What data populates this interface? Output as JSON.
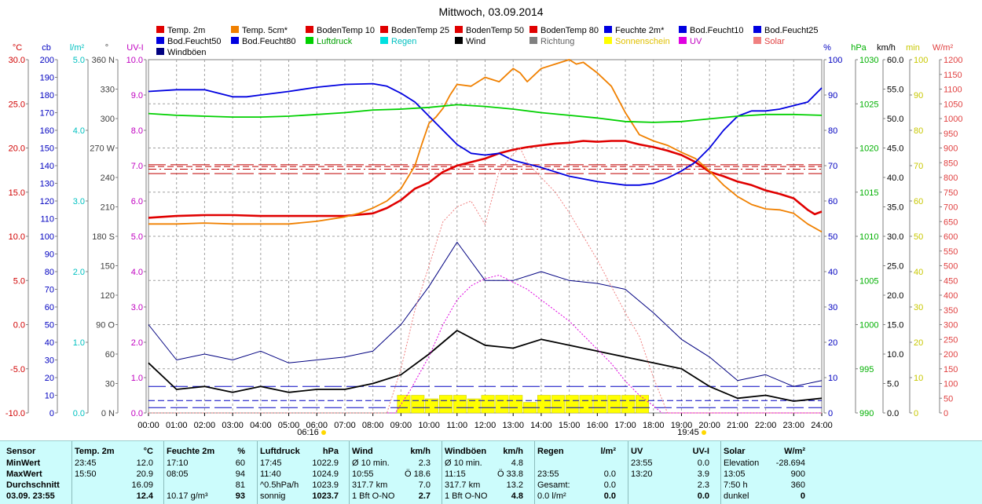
{
  "title": "Mittwoch, 03.09.2014",
  "legend": [
    {
      "label": "Temp. 2m",
      "color": "#e00000"
    },
    {
      "label": "Temp. 5cm*",
      "color": "#f08000"
    },
    {
      "label": "BodenTemp 10",
      "color": "#e00000"
    },
    {
      "label": "BodenTemp 25",
      "color": "#e00000"
    },
    {
      "label": "BodenTemp 50",
      "color": "#e00000"
    },
    {
      "label": "BodenTemp 80",
      "color": "#e00000"
    },
    {
      "label": "Feuchte 2m*",
      "color": "#0000e0"
    },
    {
      "label": "Bod.Feucht10",
      "color": "#0000e0"
    },
    {
      "label": "Bod.Feucht25",
      "color": "#0000e0"
    },
    {
      "label": "Bod.Feucht50",
      "color": "#0000e0"
    },
    {
      "label": "Bod.Feucht80",
      "color": "#0000e0"
    },
    {
      "label": "Luftdruck",
      "color": "#00d000"
    },
    {
      "label": "Regen",
      "color": "#00e0e0"
    },
    {
      "label": "Wind",
      "color": "#000000"
    },
    {
      "label": "Richtung",
      "color": "#808080"
    },
    {
      "label": "Sonnenschein",
      "color": "#ffff00"
    },
    {
      "label": "UV",
      "color": "#e000e0"
    },
    {
      "label": "Solar",
      "color": "#f08080"
    },
    {
      "label": "Windböen",
      "color": "#000080"
    }
  ],
  "axes": [
    {
      "unit": "°C",
      "color": "#d00000",
      "ticks": [
        "30.0",
        "25.0",
        "20.0",
        "15.0",
        "10.0",
        "5.0",
        "0.0",
        "-5.0",
        "-10.0"
      ]
    },
    {
      "unit": "cb",
      "color": "#0000c0",
      "ticks": [
        "200",
        "190",
        "180",
        "170",
        "160",
        "150",
        "140",
        "130",
        "120",
        "110",
        "100",
        "90",
        "80",
        "70",
        "60",
        "50",
        "40",
        "30",
        "20",
        "10",
        "0"
      ]
    },
    {
      "unit": "l/m²",
      "color": "#00c0c0",
      "ticks": [
        "5.0",
        "4.0",
        "3.0",
        "2.0",
        "1.0",
        "0.0"
      ]
    },
    {
      "unit": "°",
      "color": "#404040",
      "ticks": [
        "360 N",
        "330",
        "300",
        "270 W",
        "240",
        "210",
        "180 S",
        "150",
        "120",
        "90 O",
        "60",
        "30",
        "0 N"
      ]
    },
    {
      "unit": "UV-I",
      "color": "#c000c0",
      "ticks": [
        "10.0",
        "9.0",
        "8.0",
        "7.0",
        "6.0",
        "5.0",
        "4.0",
        "3.0",
        "2.0",
        "1.0",
        "0.0"
      ]
    },
    {
      "unit": "%",
      "color": "#0000c0",
      "ticks": [
        "100",
        "90",
        "80",
        "70",
        "60",
        "50",
        "40",
        "30",
        "20",
        "10",
        "0"
      ]
    },
    {
      "unit": "hPa",
      "color": "#00b000",
      "ticks": [
        "1030",
        "1025",
        "1020",
        "1015",
        "1010",
        "1005",
        "1000",
        "995",
        "990"
      ]
    },
    {
      "unit": "km/h",
      "color": "#000000",
      "ticks": [
        "60.0",
        "55.0",
        "50.0",
        "45.0",
        "40.0",
        "35.0",
        "30.0",
        "25.0",
        "20.0",
        "15.0",
        "10.0",
        "5.0",
        "0.0"
      ]
    },
    {
      "unit": "min",
      "color": "#c8c800",
      "ticks": [
        "100",
        "90",
        "80",
        "70",
        "60",
        "50",
        "40",
        "30",
        "20",
        "10",
        "0"
      ]
    },
    {
      "unit": "W/m²",
      "color": "#e04040",
      "ticks": [
        "1200",
        "1150",
        "1100",
        "1050",
        "1000",
        "950",
        "900",
        "850",
        "800",
        "750",
        "700",
        "650",
        "600",
        "550",
        "500",
        "450",
        "400",
        "350",
        "300",
        "250",
        "200",
        "150",
        "100",
        "50",
        "0"
      ]
    }
  ],
  "sunrise": "06:16",
  "sunset": "19:45",
  "chart_data": {
    "type": "line",
    "title": "Mittwoch, 03.09.2014",
    "x_ticks": [
      "00:00",
      "01:00",
      "02:00",
      "03:00",
      "04:00",
      "05:00",
      "06:00",
      "07:00",
      "08:00",
      "09:00",
      "10:00",
      "11:00",
      "12:00",
      "13:00",
      "14:00",
      "15:00",
      "16:00",
      "17:00",
      "18:00",
      "19:00",
      "20:00",
      "21:00",
      "22:00",
      "23:00",
      "24:00"
    ],
    "xlim": [
      0,
      24
    ],
    "series": [
      {
        "name": "Temp. 2m",
        "unit": "°C",
        "color": "#e00000",
        "ylim": [
          -10,
          30
        ],
        "x": [
          0,
          1,
          2,
          3,
          4,
          5,
          6,
          7,
          8,
          8.5,
          9,
          9.5,
          10,
          10.5,
          11,
          11.5,
          12,
          12.5,
          13,
          13.5,
          14,
          14.5,
          15,
          15.5,
          16,
          16.5,
          17,
          17.5,
          18,
          18.5,
          19,
          19.5,
          20,
          20.5,
          21,
          21.5,
          22,
          22.5,
          23,
          23.5,
          23.75,
          24
        ],
        "y": [
          12.1,
          12.3,
          12.4,
          12.4,
          12.3,
          12.3,
          12.3,
          12.3,
          12.6,
          13.2,
          14.1,
          15.4,
          16.1,
          17.3,
          18.0,
          18.4,
          18.8,
          19.4,
          19.8,
          20.1,
          20.3,
          20.5,
          20.6,
          20.8,
          20.7,
          20.8,
          20.8,
          20.4,
          20.1,
          19.7,
          19.2,
          18.4,
          17.3,
          16.8,
          16.2,
          15.8,
          15.2,
          14.8,
          14.3,
          13.0,
          12.5,
          12.8
        ]
      },
      {
        "name": "Temp. 5cm*",
        "unit": "°C",
        "color": "#f08000",
        "ylim": [
          -10,
          30
        ],
        "x": [
          0,
          1,
          2,
          3,
          4,
          5,
          6,
          7,
          7.5,
          8,
          8.5,
          9,
          9.5,
          9.75,
          10,
          10.25,
          10.5,
          10.75,
          11,
          11.5,
          12,
          12.5,
          13,
          13.25,
          13.5,
          14,
          14.5,
          15,
          15.25,
          15.5,
          16,
          16.5,
          17,
          17.5,
          18,
          18.5,
          19,
          19.5,
          20,
          20.5,
          21,
          21.5,
          22,
          22.5,
          23,
          23.5,
          24
        ],
        "y": [
          11.4,
          11.4,
          11.5,
          11.4,
          11.4,
          11.4,
          11.7,
          12.2,
          12.6,
          13.2,
          14.0,
          15.4,
          18.0,
          20.5,
          22.8,
          23.5,
          24.5,
          26.0,
          27.2,
          27.0,
          28.0,
          27.5,
          29.0,
          28.5,
          27.5,
          29.0,
          29.5,
          30.0,
          29.5,
          29.7,
          28.5,
          27.0,
          24.0,
          21.5,
          20.8,
          20.3,
          19.5,
          18.8,
          17.4,
          15.8,
          14.5,
          13.6,
          13.1,
          13.0,
          12.6,
          11.4,
          10.5
        ]
      },
      {
        "name": "Feuchte 2m*",
        "unit": "%",
        "color": "#0000e0",
        "ylim": [
          0,
          100
        ],
        "x": [
          0,
          1,
          2,
          3,
          3.5,
          4,
          5,
          6,
          7,
          8,
          8.5,
          9,
          9.5,
          10,
          10.5,
          11,
          11.5,
          12,
          12.5,
          13,
          13.5,
          14,
          15,
          16,
          17,
          17.5,
          18,
          18.5,
          19,
          19.5,
          20,
          20.5,
          21,
          21.5,
          22,
          22.5,
          23,
          23.5,
          24
        ],
        "y": [
          91,
          91.5,
          91.5,
          89.5,
          89.5,
          90,
          91,
          92.2,
          93,
          93.2,
          92.5,
          90.5,
          88,
          84,
          80,
          76,
          73.5,
          73,
          73.5,
          71.5,
          70.5,
          69.5,
          67,
          65.5,
          64.5,
          64.5,
          65,
          66.5,
          68.5,
          71,
          75,
          80,
          84,
          85.5,
          85.5,
          86,
          87,
          88,
          92
        ]
      },
      {
        "name": "Luftdruck",
        "unit": "hPa",
        "color": "#00d000",
        "ylim": [
          990,
          1030
        ],
        "x": [
          0,
          1,
          2,
          3,
          4,
          5,
          6,
          7,
          8,
          9,
          10,
          11,
          12,
          13,
          14,
          15,
          16,
          17,
          18,
          19,
          20,
          21,
          22,
          23,
          24
        ],
        "y": [
          1023.9,
          1023.7,
          1023.6,
          1023.5,
          1023.5,
          1023.6,
          1023.8,
          1024.0,
          1024.3,
          1024.4,
          1024.6,
          1024.9,
          1024.7,
          1024.4,
          1024.0,
          1023.7,
          1023.4,
          1023.0,
          1022.9,
          1023.0,
          1023.3,
          1023.6,
          1023.8,
          1023.8,
          1023.7
        ]
      },
      {
        "name": "Wind",
        "unit": "km/h",
        "color": "#000000",
        "ylim": [
          0,
          60
        ],
        "x": [
          0,
          1,
          2,
          3,
          4,
          5,
          6,
          7,
          8,
          9,
          10,
          11,
          12,
          13,
          14,
          15,
          16,
          17,
          18,
          19,
          20,
          21,
          22,
          23,
          24
        ],
        "y": [
          8.5,
          4.0,
          4.5,
          3.5,
          4.5,
          3.5,
          4.0,
          4.0,
          5.0,
          6.5,
          10.0,
          14.0,
          11.5,
          11.0,
          12.5,
          11.5,
          10.5,
          9.5,
          8.5,
          7.5,
          4.5,
          2.5,
          3.0,
          2.0,
          2.5
        ]
      },
      {
        "name": "Windböen",
        "unit": "km/h",
        "color": "#000080",
        "ylim": [
          0,
          60
        ],
        "x": [
          0,
          1,
          2,
          3,
          4,
          5,
          6,
          7,
          8,
          9,
          10,
          11,
          12,
          13,
          14,
          15,
          16,
          17,
          18,
          19,
          20,
          21,
          22,
          23,
          24
        ],
        "y": [
          15.0,
          9.0,
          10.0,
          9.0,
          10.5,
          8.5,
          9.0,
          9.5,
          10.5,
          15.0,
          21.5,
          29.0,
          22.5,
          22.5,
          24.0,
          22.5,
          22.0,
          21.0,
          17.0,
          12.5,
          9.5,
          5.5,
          6.5,
          4.5,
          5.5
        ]
      },
      {
        "name": "UV",
        "unit": "UV-I",
        "color": "#e000e0",
        "ylim": [
          0,
          10
        ],
        "x": [
          0,
          8.8,
          9.3,
          10,
          10.5,
          11,
          11.5,
          12,
          12.5,
          13,
          13.5,
          14,
          14.5,
          15,
          15.5,
          16,
          16.5,
          17,
          17.5,
          18,
          18.3,
          24
        ],
        "y": [
          0,
          0,
          0.6,
          1.6,
          2.5,
          3.2,
          3.6,
          3.8,
          3.9,
          3.7,
          3.5,
          3.2,
          2.9,
          2.6,
          2.2,
          1.8,
          1.4,
          0.9,
          0.5,
          0.2,
          0,
          0
        ]
      },
      {
        "name": "Solar",
        "unit": "W/m²",
        "color": "#f08080",
        "ylim": [
          0,
          1200
        ],
        "x": [
          0,
          8.5,
          9,
          9.5,
          10,
          10.5,
          11,
          11.5,
          12,
          12.5,
          13,
          13.25,
          13.5,
          14,
          14.5,
          15,
          15.5,
          16,
          16.5,
          17,
          17.5,
          18,
          18.5,
          24
        ],
        "y": [
          0,
          0,
          150,
          350,
          500,
          650,
          700,
          720,
          640,
          820,
          880,
          900,
          850,
          800,
          750,
          680,
          600,
          520,
          430,
          340,
          260,
          120,
          0,
          0
        ]
      }
    ],
    "sunshine": {
      "unit": "min",
      "color": "#ffff00",
      "x": [
        9.1,
        9.6,
        10.1,
        10.6,
        11.1,
        11.6,
        12.1,
        12.6,
        13.1,
        13.6,
        14.1,
        14.6,
        15.1,
        15.6,
        16.1,
        16.6,
        17.1,
        17.6
      ],
      "y": [
        5,
        5,
        4,
        5,
        5,
        4,
        5,
        5,
        5,
        3,
        5,
        5,
        5,
        5,
        5,
        5,
        5,
        5
      ]
    },
    "soil_lines": [
      {
        "name": "BodenTemp 10",
        "value": 18.1,
        "style": "longdash"
      },
      {
        "name": "BodenTemp 25",
        "value": 17.6,
        "style": "dashdot"
      },
      {
        "name": "BodenTemp 50",
        "value": 17.1,
        "style": "longdash"
      },
      {
        "name": "BodenTemp 80",
        "value": 17.9,
        "style": "shortdash"
      },
      {
        "name": "Bod.Feucht10",
        "value": 7.5,
        "style": "longdash"
      },
      {
        "name": "Bod.Feucht25",
        "value": 3.5,
        "style": "shortdash"
      },
      {
        "name": "Bod.Feucht50",
        "value": 1.5,
        "style": "longdash"
      }
    ]
  },
  "stats": {
    "headers": [
      {
        "title": "Sensor",
        "unit": ""
      },
      {
        "title": "Temp. 2m",
        "unit": "°C"
      },
      {
        "title": "Feuchte 2m",
        "unit": "%"
      },
      {
        "title": "Luftdruck",
        "unit": "hPa"
      },
      {
        "title": "Wind",
        "unit": "km/h"
      },
      {
        "title": "Windböen",
        "unit": "km/h"
      },
      {
        "title": "Regen",
        "unit": "l/m²"
      },
      {
        "title": "UV",
        "unit": "UV-I"
      },
      {
        "title": "Solar",
        "unit": "W/m²"
      }
    ],
    "rows": [
      {
        "label": "MinWert",
        "cells": [
          [
            "23:45",
            "12.0"
          ],
          [
            "17:10",
            "60"
          ],
          [
            "17:45",
            "1022.9"
          ],
          [
            "Ø 10 min.",
            "2.3"
          ],
          [
            "Ø 10 min.",
            "4.8"
          ],
          [
            "",
            ""
          ],
          [
            "23:55",
            "0.0"
          ],
          [
            "Elevation",
            "-28.694"
          ]
        ]
      },
      {
        "label": "MaxWert",
        "cells": [
          [
            "15:50",
            "20.9"
          ],
          [
            "08:05",
            "94"
          ],
          [
            "11:40",
            "1024.9"
          ],
          [
            "10:55",
            "Ö 18.6"
          ],
          [
            "11:15",
            "Ö 33.8"
          ],
          [
            "23:55",
            "0.0"
          ],
          [
            "13:20",
            "3.9"
          ],
          [
            "13:05",
            "900"
          ]
        ]
      },
      {
        "label": "Durchschnitt",
        "cells": [
          [
            "",
            "16.09"
          ],
          [
            "",
            "81"
          ],
          [
            "^0.5hPa/h",
            "1023.9"
          ],
          [
            "317.7 km",
            "7.0"
          ],
          [
            "317.7 km",
            "13.2"
          ],
          [
            "Gesamt:",
            "0.0"
          ],
          [
            "",
            "2.3"
          ],
          [
            "7:50 h",
            "360"
          ]
        ]
      },
      {
        "label": "03.09. 23:55",
        "cells": [
          [
            "",
            "12.4"
          ],
          [
            "10.17 g/m³",
            "93"
          ],
          [
            "sonnig",
            "1023.7"
          ],
          [
            "1 Bft O-NO",
            "2.7"
          ],
          [
            "1 Bft O-NO",
            "4.8"
          ],
          [
            "0.0 l/m²",
            "0.0"
          ],
          [
            "",
            "0.0"
          ],
          [
            "dunkel",
            "0"
          ]
        ]
      }
    ]
  }
}
